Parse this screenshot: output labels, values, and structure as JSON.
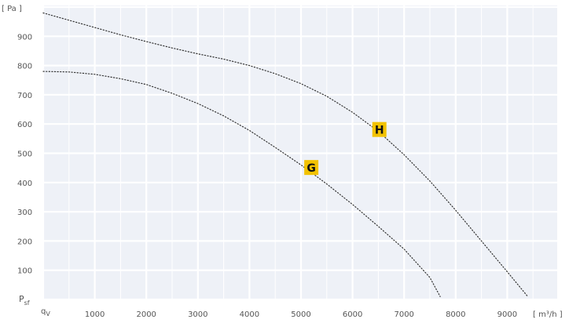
{
  "chart_data": {
    "type": "line",
    "xlabel": "[ m³/h ]",
    "ylabel": "[ Pa ]",
    "x_axis_symbol": "V",
    "y_axis_symbol": "sf",
    "x_axis_symbol_mark": "q",
    "y_axis_symbol_mark": "P",
    "xlim": [
      0,
      10000
    ],
    "ylim": [
      0,
      1000
    ],
    "xticks": [
      "1000",
      "2000",
      "3000",
      "4000",
      "5000",
      "6000",
      "7000",
      "8000",
      "9000"
    ],
    "yticks": [
      "100",
      "200",
      "300",
      "400",
      "500",
      "600",
      "700",
      "800",
      "900"
    ],
    "grid": true,
    "legend": "none",
    "series": [
      {
        "name": "G",
        "color": "#333333",
        "x": [
          0,
          500,
          1000,
          1500,
          2000,
          2500,
          3000,
          3500,
          4000,
          4500,
          5000,
          5500,
          6000,
          6500,
          7000,
          7500,
          7700
        ],
        "y": [
          780,
          778,
          770,
          755,
          735,
          705,
          670,
          628,
          578,
          520,
          460,
          395,
          325,
          250,
          172,
          75,
          10
        ]
      },
      {
        "name": "H",
        "color": "#333333",
        "x": [
          0,
          500,
          1000,
          1500,
          2000,
          2500,
          3000,
          3500,
          4000,
          4500,
          5000,
          5500,
          6000,
          6500,
          7000,
          7500,
          8000,
          8500,
          9000,
          9400
        ],
        "y": [
          980,
          955,
          930,
          905,
          882,
          860,
          840,
          822,
          800,
          772,
          738,
          695,
          640,
          575,
          495,
          405,
          305,
          200,
          95,
          10
        ]
      }
    ],
    "annotations": [
      {
        "text": "H",
        "series": "H",
        "x": 6520,
        "y": 580,
        "bg": "#f2c200"
      },
      {
        "text": "G",
        "series": "G",
        "x": 5200,
        "y": 450,
        "bg": "#f2c200"
      }
    ]
  }
}
